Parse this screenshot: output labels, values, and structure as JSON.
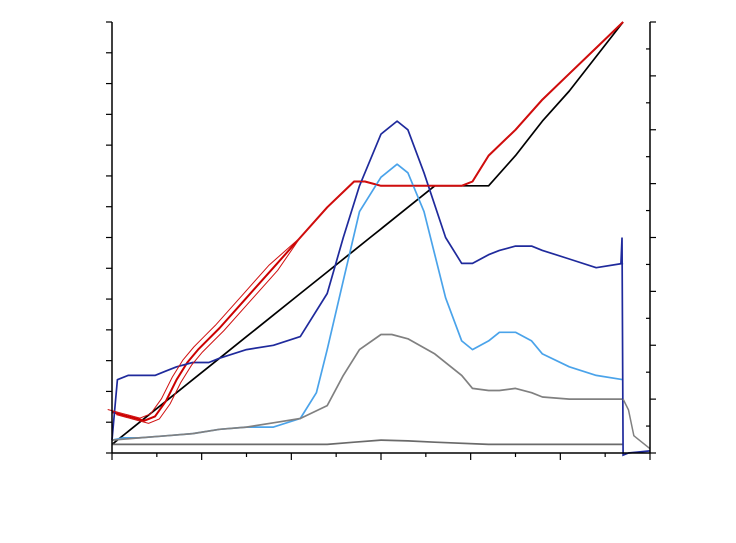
{
  "chart_data": {
    "type": "line",
    "title": "",
    "xlabel": "",
    "ylabel": "",
    "y2label": "",
    "grid": false,
    "xlim": [
      0,
      100
    ],
    "ylim": [
      0,
      100
    ],
    "y2lim": [
      0,
      100
    ],
    "series": [
      {
        "color": "#000000",
        "axis": "left",
        "x": [
          0,
          5,
          10,
          15,
          20,
          25,
          30,
          35,
          40,
          45,
          48,
          50,
          55,
          60,
          65,
          68,
          70,
          75,
          80,
          85,
          90,
          95
        ],
        "y": [
          2,
          7,
          12,
          17,
          22,
          27,
          32,
          37,
          42,
          47,
          50,
          52,
          57,
          62,
          62,
          62,
          62,
          69,
          77,
          84,
          92,
          100
        ]
      },
      {
        "color": "#cc0000",
        "axis": "left",
        "x": [
          0,
          3,
          6,
          8,
          10,
          12,
          14,
          16,
          18,
          20,
          25,
          30,
          35,
          40,
          45,
          47,
          50,
          55,
          60,
          65,
          67,
          70,
          75,
          80,
          85,
          90,
          95
        ],
        "y": [
          9.5,
          8.5,
          7.5,
          8.5,
          12,
          17,
          21,
          24,
          26.5,
          29,
          36,
          43,
          50,
          57,
          63,
          63,
          62,
          62,
          62,
          62,
          63,
          69,
          75,
          82,
          88,
          94,
          100
        ]
      },
      {
        "color": "#1f2a9c",
        "axis": "left",
        "x": [
          0,
          1,
          3,
          6,
          8,
          10,
          12,
          15,
          18,
          20,
          25,
          30,
          35,
          40,
          43,
          46,
          50,
          53,
          55,
          58,
          62,
          65,
          67,
          70,
          72,
          75,
          78,
          80,
          85,
          90,
          95
        ],
        "y": [
          3,
          17,
          18,
          18,
          18,
          19,
          20,
          21,
          21,
          22,
          24,
          25,
          27,
          37,
          50,
          62,
          74,
          77,
          75,
          65,
          50,
          44,
          44,
          46,
          47,
          48,
          48,
          47,
          45,
          43,
          44
        ]
      },
      {
        "color": "#4aa3ea",
        "axis": "left",
        "x": [
          0,
          2,
          5,
          10,
          15,
          20,
          25,
          30,
          35,
          38,
          40,
          43,
          46,
          50,
          53,
          55,
          58,
          62,
          65,
          67,
          70,
          72,
          75,
          78,
          80,
          85,
          90,
          95
        ],
        "y": [
          3,
          3.5,
          3.5,
          4,
          4.5,
          5.5,
          6,
          6,
          8,
          14,
          24,
          40,
          56,
          64,
          67,
          65,
          56,
          36,
          26,
          24,
          26,
          28,
          28,
          26,
          23,
          20,
          18,
          17
        ]
      },
      {
        "color": "#808080",
        "axis": "left",
        "x": [
          0,
          5,
          10,
          15,
          20,
          25,
          30,
          35,
          40,
          43,
          46,
          50,
          52,
          55,
          60,
          65,
          67,
          70,
          72,
          75,
          78,
          80,
          85,
          90,
          95
        ],
        "y": [
          3,
          3.5,
          4,
          4.5,
          5.5,
          6,
          7,
          8,
          11,
          18,
          24,
          27.5,
          27.5,
          26.5,
          23,
          18,
          15,
          14.5,
          14.5,
          15,
          14,
          13,
          12.5,
          12.5,
          12.5
        ]
      },
      {
        "color": "#6a6a6a",
        "axis": "left",
        "x": [
          0,
          10,
          20,
          30,
          40,
          45,
          50,
          55,
          60,
          70,
          80,
          90,
          95
        ],
        "y": [
          2,
          2,
          2,
          2,
          2,
          2.5,
          3,
          2.8,
          2.5,
          2,
          2,
          2,
          2
        ]
      }
    ]
  }
}
